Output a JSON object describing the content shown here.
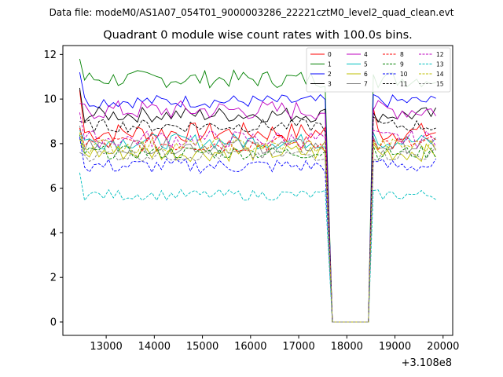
{
  "suptitle": "Data file: modeM0/AS1A07_054T01_9000003286_22221cztM0_level2_quad_clean.evt",
  "chart_data": {
    "type": "line",
    "title": "Quadrant 0 module wise count rates with 100.0s bins.",
    "xlabel": "",
    "ylabel": "",
    "x_offset_label": "+3.108e8",
    "xlim": [
      12100,
      20200
    ],
    "ylim": [
      -0.6,
      12.4
    ],
    "x_ticks": [
      13000,
      14000,
      15000,
      16000,
      17000,
      18000,
      19000,
      20000
    ],
    "x_tick_labels": [
      "13000",
      "14000",
      "15000",
      "16000",
      "17000",
      "18000",
      "19000",
      "20000"
    ],
    "y_ticks": [
      0,
      2,
      4,
      6,
      8,
      10,
      12
    ],
    "y_tick_labels": [
      "0",
      "2",
      "4",
      "6",
      "8",
      "10",
      "12"
    ],
    "legend_position": "upper right",
    "legend_columns": 4,
    "gap": {
      "x_start": 17700,
      "x_end": 18450,
      "value": 0.0
    },
    "segments": [
      {
        "x_start": 12450,
        "x_end": 17600,
        "step": 100
      },
      {
        "x_start": 18550,
        "x_end": 19850,
        "step": 100
      }
    ],
    "series": [
      {
        "name": "0",
        "color": "#ff0000",
        "dash": "solid",
        "level": 8.5,
        "noise": 0.45,
        "start": 10.4,
        "pre_gap": 10.4,
        "post_gap": 9.6
      },
      {
        "name": "1",
        "color": "#008000",
        "dash": "solid",
        "level": 10.9,
        "noise": 0.4,
        "start": 11.8,
        "pre_gap": 11.4,
        "post_gap": 11.1
      },
      {
        "name": "2",
        "color": "#0000ff",
        "dash": "solid",
        "level": 9.9,
        "noise": 0.3,
        "start": 11.2,
        "pre_gap": 10.5,
        "post_gap": 10.2
      },
      {
        "name": "3",
        "color": "#000000",
        "dash": "solid",
        "level": 9.3,
        "noise": 0.35,
        "start": 10.5,
        "pre_gap": 10.5,
        "post_gap": 9.4
      },
      {
        "name": "4",
        "color": "#bf00bf",
        "dash": "solid",
        "level": 9.5,
        "noise": 0.45,
        "start": 9.8,
        "pre_gap": 10.0,
        "post_gap": 9.5
      },
      {
        "name": "5",
        "color": "#00bfbf",
        "dash": "solid",
        "level": 8.1,
        "noise": 0.35,
        "start": 8.6,
        "pre_gap": 8.5,
        "post_gap": 8.5
      },
      {
        "name": "6",
        "color": "#bfbf00",
        "dash": "solid",
        "level": 7.6,
        "noise": 0.4,
        "start": 8.2,
        "pre_gap": 8.2,
        "post_gap": 8.0
      },
      {
        "name": "7",
        "color": "#808080",
        "dash": "solid",
        "level": 7.9,
        "noise": 0.35,
        "start": 8.8,
        "pre_gap": 8.4,
        "post_gap": 8.3
      },
      {
        "name": "8",
        "color": "#ff0000",
        "dash": "dashed",
        "level": 8.0,
        "noise": 0.4,
        "start": 8.7,
        "pre_gap": 8.6,
        "post_gap": 8.2
      },
      {
        "name": "9",
        "color": "#008000",
        "dash": "dashed",
        "level": 7.6,
        "noise": 0.3,
        "start": 8.4,
        "pre_gap": 8.0,
        "post_gap": 7.9
      },
      {
        "name": "10",
        "color": "#0000ff",
        "dash": "dashed",
        "level": 7.0,
        "noise": 0.35,
        "start": 8.3,
        "pre_gap": 7.9,
        "post_gap": 7.2
      },
      {
        "name": "11",
        "color": "#000000",
        "dash": "dashed",
        "level": 8.8,
        "noise": 0.3,
        "start": 9.0,
        "pre_gap": 9.0,
        "post_gap": 9.2
      },
      {
        "name": "12",
        "color": "#bf00bf",
        "dash": "dashed",
        "level": 8.2,
        "noise": 0.4,
        "start": 9.4,
        "pre_gap": 8.8,
        "post_gap": 8.6
      },
      {
        "name": "13",
        "color": "#00bfbf",
        "dash": "dashed",
        "level": 5.7,
        "noise": 0.25,
        "start": 6.7,
        "pre_gap": 6.3,
        "post_gap": 5.9
      },
      {
        "name": "14",
        "color": "#bfbf00",
        "dash": "dashed",
        "level": 7.9,
        "noise": 0.35,
        "start": 8.5,
        "pre_gap": 8.3,
        "post_gap": 8.1
      },
      {
        "name": "15",
        "color": "#808080",
        "dash": "dashed",
        "level": 7.5,
        "noise": 0.3,
        "start": 7.6,
        "pre_gap": 7.8,
        "post_gap": 7.3
      }
    ]
  }
}
